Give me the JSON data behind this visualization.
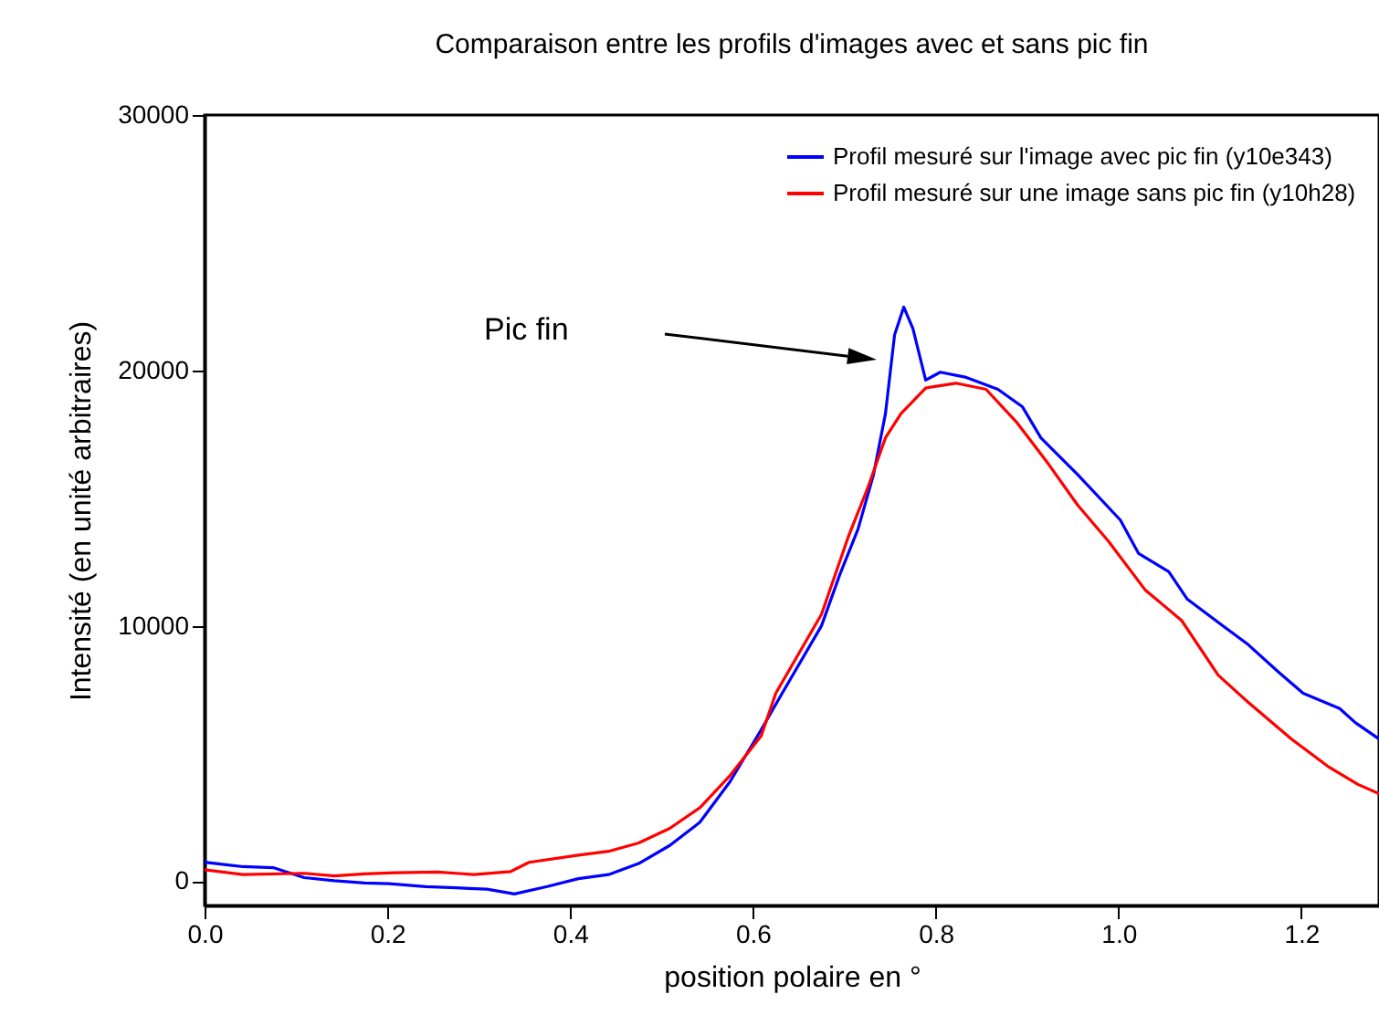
{
  "chart_data": {
    "type": "line",
    "title": "Comparaison entre les profils d'images avec et sans pic fin",
    "xlabel": "position polaire en °",
    "ylabel": "Intensité (en unité arbitraires)",
    "xlim": [
      0,
      1.285
    ],
    "ylim": [
      -950,
      30000
    ],
    "xticks": [
      {
        "value": 0,
        "label": "0.0"
      },
      {
        "value": 0.2,
        "label": "0.2"
      },
      {
        "value": 0.4,
        "label": "0.4"
      },
      {
        "value": 0.6,
        "label": "0.6"
      },
      {
        "value": 0.8,
        "label": "0.8"
      },
      {
        "value": 1,
        "label": "1.0"
      },
      {
        "value": 1.2,
        "label": "1.2"
      }
    ],
    "yticks": [
      0,
      10000,
      20000,
      30000
    ],
    "legend": "top right",
    "grid": false,
    "marker": "none",
    "line_style": "solid",
    "annotations": [
      "Pic fin"
    ],
    "series": [
      {
        "name": "Profil mesuré sur l'image avec pic fin (y10e343)",
        "color": "#0000ff",
        "x": [
          0,
          0.042,
          0.075,
          0.109,
          0.142,
          0.175,
          0.202,
          0.242,
          0.275,
          0.309,
          0.339,
          0.375,
          0.409,
          0.442,
          0.475,
          0.509,
          0.542,
          0.575,
          0.609,
          0.632,
          0.675,
          0.695,
          0.715,
          0.732,
          0.745,
          0.755,
          0.765,
          0.775,
          0.789,
          0.805,
          0.832,
          0.868,
          0.895,
          0.915,
          0.955,
          1.002,
          1.022,
          1.055,
          1.075,
          1.115,
          1.142,
          1.175,
          1.202,
          1.242,
          1.259,
          1.285
        ],
        "values": [
          740,
          570,
          530,
          140,
          20,
          -70,
          -100,
          -210,
          -260,
          -310,
          -500,
          -210,
          100,
          260,
          690,
          1400,
          2310,
          3900,
          5930,
          7360,
          10000,
          12000,
          13790,
          15930,
          18310,
          21400,
          22480,
          21640,
          19620,
          19930,
          19740,
          19260,
          18570,
          17360,
          15930,
          14140,
          12830,
          12120,
          11050,
          9980,
          9260,
          8190,
          7360,
          6760,
          6210,
          5570
        ]
      },
      {
        "name": "Profil mesuré sur une image sans pic fin (y10h28)",
        "color": "#ff0000",
        "x": [
          0,
          0.042,
          0.109,
          0.142,
          0.175,
          0.209,
          0.255,
          0.295,
          0.335,
          0.355,
          0.409,
          0.442,
          0.475,
          0.509,
          0.542,
          0.575,
          0.609,
          0.625,
          0.675,
          0.705,
          0.725,
          0.745,
          0.762,
          0.789,
          0.822,
          0.855,
          0.889,
          0.922,
          0.955,
          0.989,
          1.029,
          1.069,
          1.109,
          1.142,
          1.189,
          1.229,
          1.262,
          1.285
        ],
        "values": [
          450,
          260,
          310,
          210,
          290,
          330,
          360,
          260,
          380,
          740,
          1020,
          1170,
          1500,
          2070,
          2880,
          4140,
          5690,
          7360,
          10450,
          13550,
          15340,
          17360,
          18310,
          19310,
          19500,
          19260,
          17950,
          16400,
          14740,
          13310,
          11410,
          10210,
          8070,
          7000,
          5570,
          4500,
          3790,
          3430
        ]
      }
    ]
  }
}
